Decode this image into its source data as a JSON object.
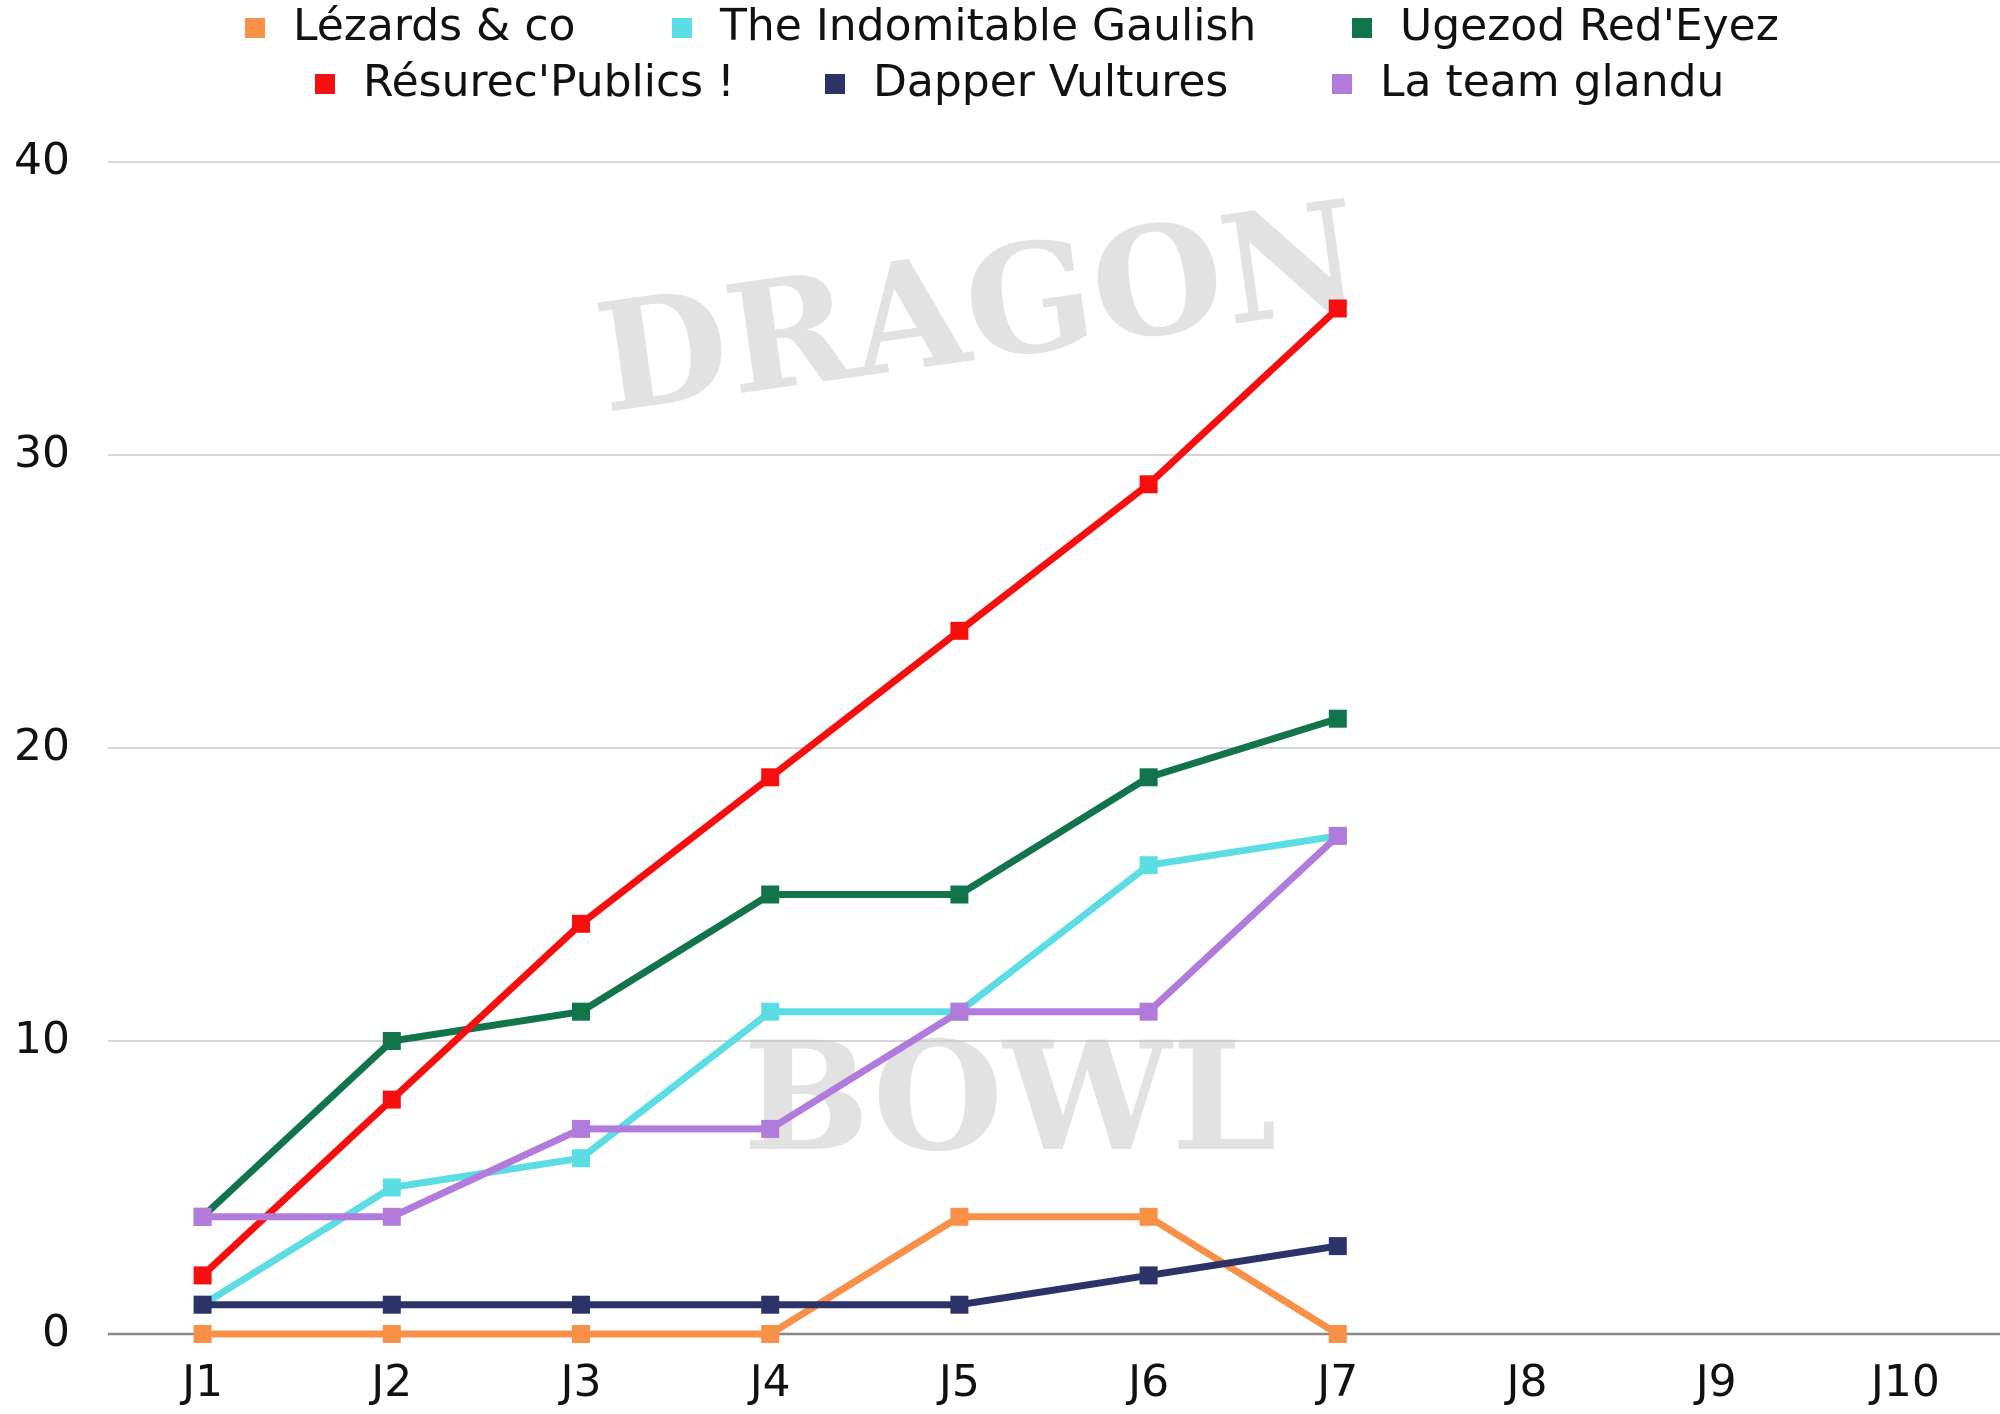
{
  "chart_data": {
    "type": "line",
    "watermark": {
      "top": "DRAGON",
      "bottom": "BOWL"
    },
    "categories": [
      "J1",
      "J2",
      "J3",
      "J4",
      "J5",
      "J6",
      "J7",
      "J8",
      "J9",
      "J10"
    ],
    "series": [
      {
        "name": "Lézards & co",
        "color": "#f89048",
        "values": [
          0,
          0,
          0,
          0,
          4,
          4,
          0,
          null,
          null,
          null
        ]
      },
      {
        "name": "The Indomitable Gaulish",
        "color": "#5cdde4",
        "values": [
          1,
          5,
          6,
          11,
          11,
          16,
          17,
          null,
          null,
          null
        ]
      },
      {
        "name": "Ugezod Red'Eyez",
        "color": "#11744a",
        "values": [
          4,
          10,
          11,
          15,
          15,
          19,
          21,
          null,
          null,
          null
        ]
      },
      {
        "name": "Résurec'Publics !",
        "color": "#f70f0f",
        "values": [
          2,
          8,
          14,
          19,
          24,
          29,
          35,
          null,
          null,
          null
        ]
      },
      {
        "name": "Dapper Vultures",
        "color": "#2d3369",
        "values": [
          1,
          1,
          1,
          1,
          1,
          2,
          3,
          null,
          null,
          null
        ]
      },
      {
        "name": "La team glandu",
        "color": "#b07bdb",
        "values": [
          4,
          4,
          7,
          7,
          11,
          11,
          17,
          null,
          null,
          null
        ]
      }
    ],
    "ylim": [
      0,
      40
    ],
    "yticks": [
      0,
      10,
      20,
      30,
      40
    ],
    "grid": true,
    "legend": "top"
  }
}
